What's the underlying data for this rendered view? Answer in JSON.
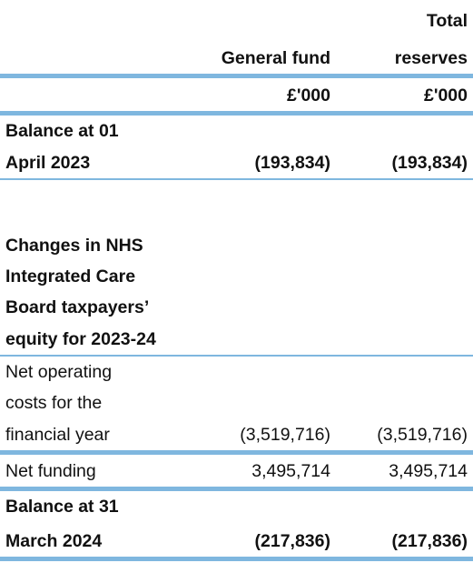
{
  "header": {
    "col2": "General fund",
    "col3_line1": "Total",
    "col3_line2": "reserves",
    "unit_col2": "£'000",
    "unit_col3": "£'000"
  },
  "rows": {
    "opening": {
      "label_line1": "Balance at 01",
      "label_line2": "April 2023",
      "general_fund": "(193,834)",
      "total_reserves": "(193,834)"
    },
    "section": {
      "line1": "Changes in NHS",
      "line2": "Integrated Care",
      "line3": "Board taxpayers’",
      "line4": "equity for 2023-24"
    },
    "net_operating": {
      "label_line1": "Net operating",
      "label_line2": "costs for the",
      "label_line3": "financial year",
      "general_fund": "(3,519,716)",
      "total_reserves": "(3,519,716)"
    },
    "net_funding": {
      "label": "Net funding",
      "general_fund": "3,495,714",
      "total_reserves": "3,495,714"
    },
    "closing": {
      "label_line1": "Balance at 31",
      "label_line2": "March 2024",
      "general_fund": "(217,836)",
      "total_reserves": "(217,836)"
    }
  },
  "colors": {
    "rule": "#7fb7df",
    "text": "#111111"
  }
}
